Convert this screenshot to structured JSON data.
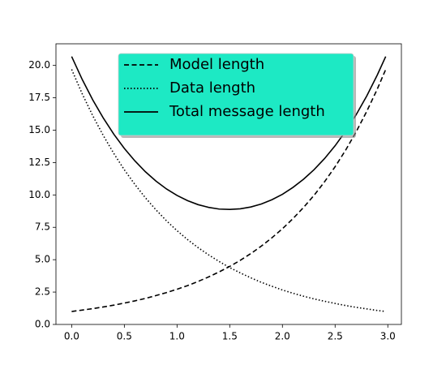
{
  "chart_data": {
    "type": "line",
    "x": [
      0,
      0.1,
      0.2,
      0.3,
      0.4,
      0.5,
      0.6,
      0.7,
      0.8,
      0.9,
      1.0,
      1.1,
      1.2,
      1.3,
      1.4,
      1.5,
      1.6,
      1.7,
      1.8,
      1.9,
      2.0,
      2.1,
      2.2,
      2.3,
      2.4,
      2.5,
      2.6,
      2.7,
      2.8,
      2.9,
      2.98
    ],
    "series": [
      {
        "name": "Model length",
        "color": "#000000",
        "linestyle": "dashed",
        "values": [
          1.0,
          1.11,
          1.22,
          1.35,
          1.49,
          1.65,
          1.82,
          2.01,
          2.23,
          2.46,
          2.72,
          3.0,
          3.32,
          3.67,
          4.06,
          4.48,
          4.95,
          5.47,
          6.05,
          6.69,
          7.39,
          8.17,
          9.03,
          9.97,
          11.02,
          12.18,
          13.46,
          14.88,
          16.45,
          18.17,
          19.69
        ]
      },
      {
        "name": "Data length",
        "color": "#000000",
        "linestyle": "dotted",
        "values": [
          19.69,
          17.81,
          16.12,
          14.59,
          13.2,
          11.94,
          10.81,
          9.78,
          8.85,
          8.0,
          7.24,
          6.55,
          5.93,
          5.37,
          4.86,
          4.39,
          3.98,
          3.6,
          3.25,
          2.95,
          2.66,
          2.41,
          2.18,
          1.97,
          1.79,
          1.62,
          1.46,
          1.32,
          1.2,
          1.08,
          1.0
        ]
      },
      {
        "name": "Total message length",
        "color": "#000000",
        "linestyle": "solid",
        "values": [
          20.69,
          18.92,
          17.34,
          15.94,
          14.69,
          13.59,
          12.63,
          11.79,
          11.07,
          10.46,
          9.96,
          9.56,
          9.25,
          9.04,
          8.91,
          8.88,
          8.93,
          9.07,
          9.3,
          9.63,
          10.05,
          10.58,
          11.21,
          11.95,
          12.81,
          13.8,
          14.93,
          16.2,
          17.64,
          19.26,
          20.69
        ]
      }
    ],
    "xlim": [
      -0.149,
      3.129
    ],
    "ylim": [
      0,
      21.67
    ],
    "xticks": [
      {
        "value": 0,
        "label": "0.0"
      },
      0.5,
      {
        "value": 1,
        "label": "1.0"
      },
      1.5,
      {
        "value": 2,
        "label": "2.0"
      },
      2.5,
      {
        "value": 3,
        "label": "3.0"
      }
    ],
    "yticks": [
      {
        "value": 0,
        "label": "0.0"
      },
      2.5,
      {
        "value": 5,
        "label": "5.0"
      },
      7.5,
      {
        "value": 10,
        "label": "10.0"
      },
      12.5,
      {
        "value": 15,
        "label": "15.0"
      },
      17.5,
      {
        "value": 20,
        "label": "20.0"
      }
    ],
    "legend": {
      "loc": "upper center",
      "facecolor": "#1de9c4",
      "shadow": true
    }
  }
}
